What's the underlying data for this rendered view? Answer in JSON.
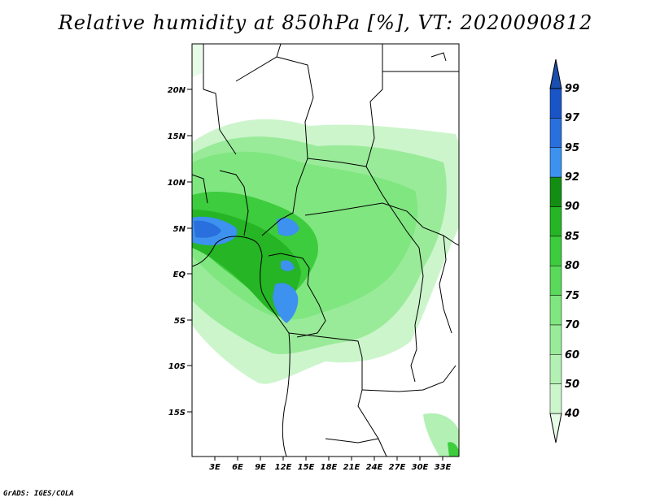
{
  "title": "Relative humidity at 850hPa [%], VT: 2020090812",
  "credit": "GrADS: IGES/COLA",
  "map": {
    "lat_labels": [
      "20N",
      "15N",
      "10N",
      "5N",
      "EQ",
      "5S",
      "10S",
      "15S"
    ],
    "lon_labels": [
      "3E",
      "6E",
      "9E",
      "12E",
      "15E",
      "18E",
      "21E",
      "24E",
      "27E",
      "30E",
      "33E"
    ]
  },
  "colorbar": {
    "levels": [
      "40",
      "50",
      "60",
      "70",
      "75",
      "80",
      "85",
      "90",
      "92",
      "95",
      "97",
      "99"
    ],
    "colors": [
      "#e6fce6",
      "#ccf5cc",
      "#b3f0b3",
      "#99eb99",
      "#80e680",
      "#5ad95a",
      "#3dcc3d",
      "#25b525",
      "#128f12",
      "#3c92ee",
      "#2a6fde",
      "#1a55c8",
      "#1a4fb0"
    ]
  }
}
